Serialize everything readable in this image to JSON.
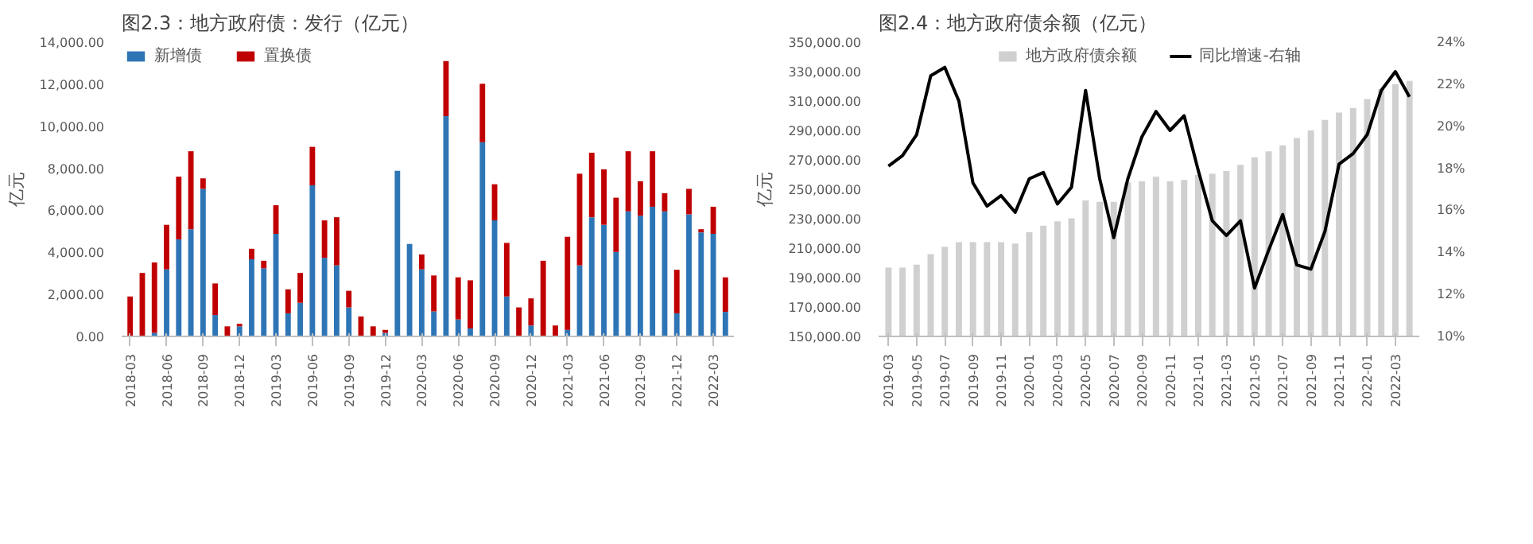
{
  "chart_data": [
    {
      "type": "bar",
      "title": "图2.3：地方政府债：发行（亿元）",
      "ylabel": "亿元",
      "stacked": true,
      "legend": "top left",
      "grid": false,
      "categories": [
        "2018-03",
        null,
        null,
        "2018-06",
        null,
        null,
        "2018-09",
        null,
        null,
        "2018-12",
        null,
        null,
        "2019-03",
        null,
        null,
        "2019-06",
        null,
        null,
        "2019-09",
        null,
        null,
        "2019-12",
        null,
        null,
        "2020-03",
        null,
        null,
        "2020-06",
        null,
        null,
        "2020-09",
        null,
        null,
        "2020-12",
        null,
        null,
        "2021-03",
        null,
        null,
        "2021-06",
        null,
        null,
        "2021-09",
        null,
        null,
        "2021-12",
        null,
        null,
        "2022-03",
        null
      ],
      "ylim": [
        0,
        14000
      ],
      "yticks": [
        {
          "value": 0,
          "label": "0.00"
        },
        {
          "value": 2000,
          "label": "2,000.00"
        },
        {
          "value": 4000,
          "label": "4,000.00"
        },
        {
          "value": 6000,
          "label": "6,000.00"
        },
        {
          "value": 8000,
          "label": "8,000.00"
        },
        {
          "value": 10000,
          "label": "10,000.00"
        },
        {
          "value": 12000,
          "label": "12,000.00"
        },
        {
          "value": 14000,
          "label": "14,000.00"
        }
      ],
      "series": [
        {
          "name": "新增债",
          "color": "#2e75b6",
          "values": [
            0,
            0,
            170,
            3190,
            4620,
            5100,
            7020,
            1020,
            0,
            480,
            3670,
            3240,
            4880,
            1100,
            1600,
            7190,
            3740,
            3380,
            1380,
            0,
            0,
            170,
            7880,
            4400,
            3190,
            1190,
            10480,
            810,
            380,
            9240,
            5520,
            1900,
            0,
            520,
            0,
            0,
            310,
            3380,
            5670,
            5310,
            4020,
            5950,
            5740,
            6170,
            5950,
            1100,
            5810,
            4950,
            4880,
            1170
          ]
        },
        {
          "name": "置换债",
          "color": "#c00000",
          "values": [
            1900,
            3020,
            3350,
            2120,
            2980,
            3710,
            500,
            1500,
            480,
            120,
            500,
            360,
            1360,
            1140,
            1420,
            1830,
            1780,
            2290,
            790,
            950,
            480,
            140,
            0,
            0,
            710,
            1710,
            2620,
            2000,
            2290,
            2780,
            1720,
            2550,
            1380,
            1290,
            3600,
            520,
            4430,
            4360,
            3070,
            2640,
            2580,
            2860,
            1640,
            2640,
            860,
            2070,
            1210,
            150,
            1290,
            1640
          ]
        }
      ]
    },
    {
      "type": "bar",
      "title": "图2.4：地方政府债余额（亿元）",
      "ylabel": "亿元",
      "legend": "top",
      "grid": false,
      "categories": [
        "2019-03",
        null,
        "2019-05",
        null,
        "2019-07",
        null,
        "2019-09",
        null,
        "2019-11",
        null,
        "2020-01",
        null,
        "2020-03",
        null,
        "2020-05",
        null,
        "2020-07",
        null,
        "2020-09",
        null,
        "2020-11",
        null,
        "2021-01",
        null,
        "2021-03",
        null,
        "2021-05",
        null,
        "2021-07",
        null,
        "2021-09",
        null,
        "2021-11",
        null,
        "2022-01",
        null,
        "2022-03",
        null
      ],
      "ylim": [
        150000,
        350000
      ],
      "yticks": [
        {
          "value": 150000,
          "label": "150,000.00"
        },
        {
          "value": 170000,
          "label": "170,000.00"
        },
        {
          "value": 190000,
          "label": "190,000.00"
        },
        {
          "value": 210000,
          "label": "210,000.00"
        },
        {
          "value": 230000,
          "label": "230,000.00"
        },
        {
          "value": 250000,
          "label": "250,000.00"
        },
        {
          "value": 270000,
          "label": "270,000.00"
        },
        {
          "value": 290000,
          "label": "290,000.00"
        },
        {
          "value": 310000,
          "label": "310,000.00"
        },
        {
          "value": 330000,
          "label": "330,000.00"
        },
        {
          "value": 350000,
          "label": "350,000.00"
        }
      ],
      "y2lim": [
        10,
        24
      ],
      "y2ticks": [
        {
          "value": 10,
          "label": "10%"
        },
        {
          "value": 12,
          "label": "12%"
        },
        {
          "value": 14,
          "label": "14%"
        },
        {
          "value": 16,
          "label": "16%"
        },
        {
          "value": 18,
          "label": "18%"
        },
        {
          "value": 20,
          "label": "20%"
        },
        {
          "value": 22,
          "label": "22%"
        },
        {
          "value": 24,
          "label": "24%"
        }
      ],
      "series": [
        {
          "name": "地方政府债余额",
          "color": "#d0d0d0",
          "values": [
            196800,
            196800,
            198800,
            205900,
            211000,
            214100,
            214100,
            214100,
            214100,
            213100,
            220800,
            225300,
            228300,
            230300,
            242500,
            241500,
            241500,
            254700,
            255400,
            258500,
            255400,
            256400,
            259800,
            260500,
            262500,
            266600,
            271700,
            275800,
            279800,
            284900,
            290000,
            297100,
            302200,
            305300,
            311400,
            318100,
            321500,
            323600
          ]
        },
        {
          "name": "同比增速-右轴",
          "color": "#000000",
          "type": "line",
          "axis": "y2",
          "values": [
            18.1,
            18.6,
            19.6,
            22.4,
            22.8,
            21.2,
            17.3,
            16.2,
            16.7,
            15.9,
            17.5,
            17.8,
            16.3,
            17.1,
            21.7,
            17.5,
            14.7,
            17.5,
            19.5,
            20.7,
            19.8,
            20.5,
            17.9,
            15.5,
            14.8,
            15.5,
            12.3,
            14.1,
            15.8,
            13.4,
            13.2,
            15.0,
            18.2,
            18.7,
            19.6,
            21.7,
            22.6,
            21.4
          ]
        }
      ]
    }
  ]
}
